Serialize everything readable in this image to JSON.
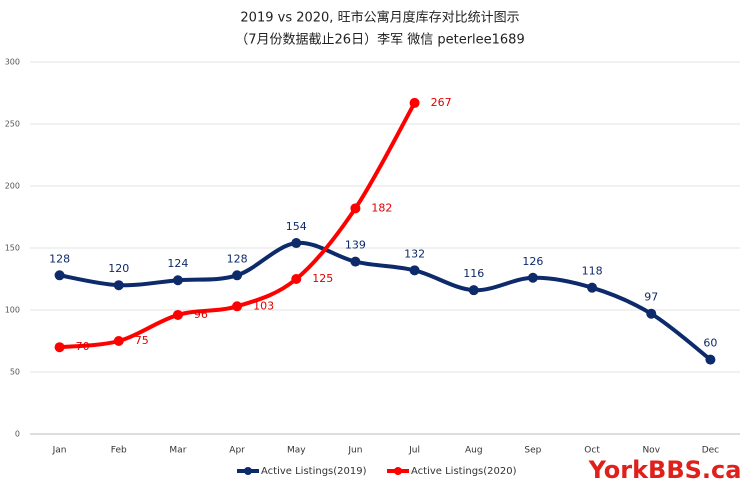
{
  "chart_data": {
    "type": "line",
    "title": "2019 vs 2020, 旺市公寓月度库存对比统计图示",
    "subtitle": "（7月份数据截止26日）李军 微信 peterlee1689",
    "watermark": "YorkBBS.ca",
    "categories": [
      "Jan",
      "Feb",
      "Mar",
      "Apr",
      "May",
      "Jun",
      "Jul",
      "Aug",
      "Sep",
      "Oct",
      "Nov",
      "Dec"
    ],
    "series": [
      {
        "name": "Active Listings(2019)",
        "color": "#0d2a6b",
        "values": [
          128,
          120,
          124,
          128,
          154,
          139,
          132,
          116,
          126,
          118,
          97,
          60
        ]
      },
      {
        "name": "Active Listings(2020)",
        "color": "#ff0000",
        "values": [
          70,
          75,
          96,
          103,
          125,
          182,
          267,
          null,
          null,
          null,
          null,
          null
        ]
      }
    ],
    "ylim": [
      0,
      300
    ],
    "yticks": [
      0,
      50,
      100,
      150,
      200,
      250,
      300
    ],
    "grid": true,
    "legend": "bottom",
    "smooth": true
  }
}
